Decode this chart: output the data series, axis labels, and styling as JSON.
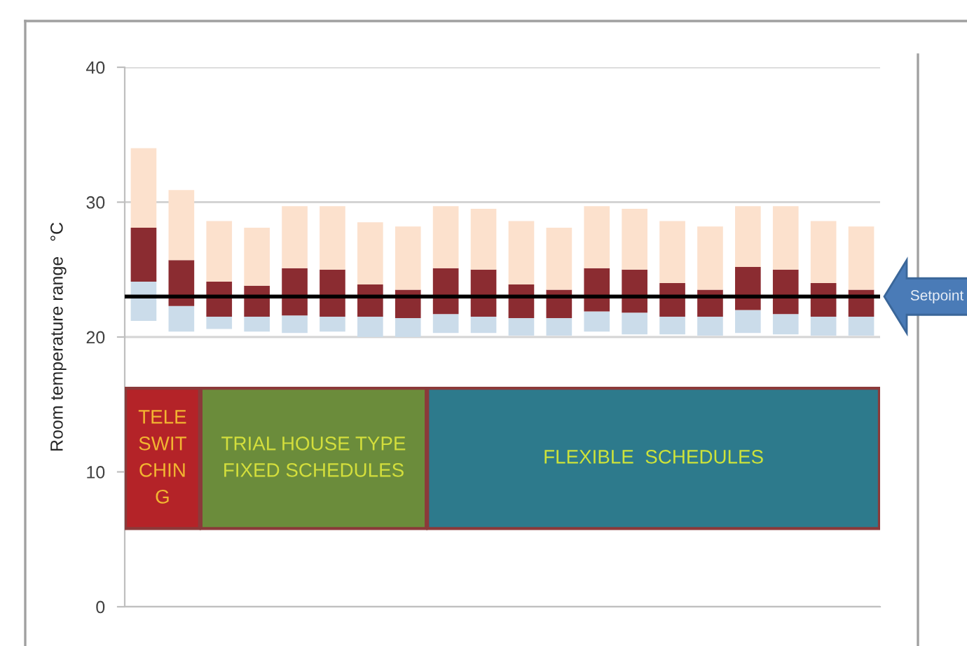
{
  "chart_data": {
    "type": "bar",
    "ylabel": "Room temperature range   °C",
    "categories": [
      null,
      null,
      null,
      null,
      null,
      null,
      null,
      null,
      null,
      null,
      null,
      null,
      null,
      null,
      null,
      null,
      null,
      null,
      null,
      null
    ],
    "series": [
      {
        "color": "#cbdcea",
        "base": [
          21.2,
          20.4,
          20.6,
          20.4,
          20.3,
          20.4,
          20.0,
          20.0,
          20.3,
          20.3,
          20.1,
          20.1,
          20.4,
          20.2,
          20.2,
          20.1,
          20.3,
          20.2,
          20.1,
          20.1
        ],
        "values": [
          2.9,
          1.9,
          0.9,
          1.1,
          1.3,
          1.1,
          1.5,
          1.4,
          1.4,
          1.2,
          1.3,
          1.3,
          1.5,
          1.6,
          1.3,
          1.4,
          1.7,
          1.5,
          1.4,
          1.4
        ]
      },
      {
        "color": "#8b2c31",
        "base": [
          24.1,
          22.3,
          21.5,
          21.5,
          21.6,
          21.5,
          21.5,
          21.4,
          21.7,
          21.5,
          21.4,
          21.4,
          21.9,
          21.8,
          21.5,
          21.5,
          22.0,
          21.7,
          21.5,
          21.5
        ],
        "values": [
          4.0,
          3.4,
          2.6,
          2.3,
          3.5,
          3.5,
          2.4,
          2.1,
          3.4,
          3.5,
          2.5,
          2.1,
          3.2,
          3.2,
          2.5,
          2.0,
          3.2,
          3.3,
          2.5,
          2.0
        ]
      },
      {
        "color": "#fce1cd",
        "base": [
          28.1,
          25.7,
          24.1,
          23.8,
          25.1,
          25.0,
          23.9,
          23.5,
          25.1,
          25.0,
          23.9,
          23.5,
          25.1,
          25.0,
          24.0,
          23.5,
          25.2,
          25.0,
          24.0,
          23.5
        ],
        "values": [
          5.9,
          5.2,
          4.5,
          4.3,
          4.6,
          4.7,
          4.6,
          4.7,
          4.6,
          4.5,
          4.7,
          4.6,
          4.6,
          4.5,
          4.6,
          4.7,
          4.5,
          4.7,
          4.6,
          4.7
        ]
      }
    ],
    "ylim": [
      0,
      40
    ],
    "yticks": [
      0,
      10,
      20,
      30,
      40
    ],
    "grid": "y",
    "ref_lines": [
      {
        "axis": "y",
        "value": 23,
        "label": "Setpoint",
        "color": "#000000"
      }
    ],
    "annotations": [
      "TELE\nSWIT\nCHIN\nG",
      "TRIAL HOUSE TYPE\nFIXED SCHEDULES",
      "FLEXIBLE  SCHEDULES"
    ]
  }
}
